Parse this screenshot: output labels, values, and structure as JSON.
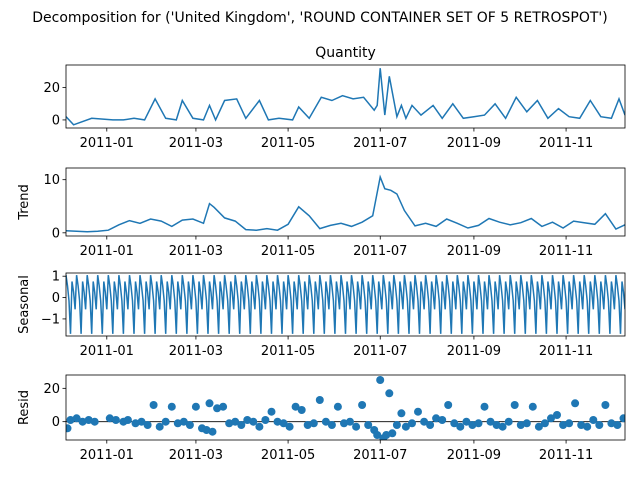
{
  "figure": {
    "suptitle": "Decomposition for ('United Kingdom', 'ROUND CONTAINER SET OF 5 RETROSPOT')",
    "line_color": "#1f77b4"
  },
  "chart_data": [
    {
      "type": "line",
      "title": "Quantity",
      "ylabel": "",
      "ylim": [
        -5,
        34
      ],
      "yticks": [
        0,
        20
      ],
      "xticks": [
        "2011-01",
        "2011-03",
        "2011-05",
        "2011-07",
        "2011-09",
        "2011-11"
      ],
      "xlim": [
        "2010-12-05",
        "2011-12-10"
      ],
      "series": [
        {
          "x": [
            "2010-12-05",
            "2010-12-10",
            "2010-12-22",
            "2011-01-05",
            "2011-01-12",
            "2011-01-19",
            "2011-01-26",
            "2011-02-02",
            "2011-02-09",
            "2011-02-16",
            "2011-02-20",
            "2011-02-27",
            "2011-03-06",
            "2011-03-10",
            "2011-03-14",
            "2011-03-20",
            "2011-03-28",
            "2011-04-03",
            "2011-04-12",
            "2011-04-18",
            "2011-04-25",
            "2011-05-04",
            "2011-05-08",
            "2011-05-15",
            "2011-05-23",
            "2011-05-30",
            "2011-06-06",
            "2011-06-13",
            "2011-06-20",
            "2011-06-27",
            "2011-06-29",
            "2011-07-01",
            "2011-07-04",
            "2011-07-07",
            "2011-07-12",
            "2011-07-15",
            "2011-07-18",
            "2011-07-22",
            "2011-07-28",
            "2011-08-05",
            "2011-08-11",
            "2011-08-18",
            "2011-08-25",
            "2011-09-01",
            "2011-09-08",
            "2011-09-15",
            "2011-09-22",
            "2011-09-29",
            "2011-10-06",
            "2011-10-13",
            "2011-10-20",
            "2011-10-27",
            "2011-11-03",
            "2011-11-10",
            "2011-11-17",
            "2011-11-24",
            "2011-12-01",
            "2011-12-06",
            "2011-12-10"
          ],
          "y": [
            2,
            -3,
            1,
            0,
            0,
            1,
            0,
            13,
            1,
            0,
            12,
            1,
            0,
            9,
            0,
            12,
            13,
            1,
            12,
            0,
            1,
            0,
            8,
            1,
            14,
            12,
            15,
            13,
            14,
            6,
            9,
            32,
            3,
            27,
            2,
            9,
            1,
            9,
            3,
            9,
            1,
            10,
            1,
            2,
            3,
            10,
            1,
            14,
            5,
            12,
            1,
            7,
            2,
            1,
            12,
            2,
            1,
            13,
            3
          ]
        }
      ]
    },
    {
      "type": "line",
      "title": "",
      "ylabel": "Trend",
      "ylim": [
        -0.6,
        12.2
      ],
      "yticks": [
        0,
        10
      ],
      "xticks": [
        "2011-01",
        "2011-03",
        "2011-05",
        "2011-07",
        "2011-09",
        "2011-11"
      ],
      "xlim": [
        "2010-12-05",
        "2011-12-10"
      ],
      "series": [
        {
          "x": [
            "2010-12-05",
            "2010-12-12",
            "2010-12-19",
            "2010-12-26",
            "2011-01-02",
            "2011-01-09",
            "2011-01-16",
            "2011-01-23",
            "2011-01-30",
            "2011-02-06",
            "2011-02-13",
            "2011-02-20",
            "2011-02-27",
            "2011-03-06",
            "2011-03-10",
            "2011-03-13",
            "2011-03-20",
            "2011-03-27",
            "2011-04-03",
            "2011-04-10",
            "2011-04-17",
            "2011-04-24",
            "2011-05-01",
            "2011-05-08",
            "2011-05-15",
            "2011-05-22",
            "2011-05-29",
            "2011-06-05",
            "2011-06-12",
            "2011-06-19",
            "2011-06-26",
            "2011-07-01",
            "2011-07-04",
            "2011-07-08",
            "2011-07-12",
            "2011-07-17",
            "2011-07-24",
            "2011-07-31",
            "2011-08-07",
            "2011-08-14",
            "2011-08-21",
            "2011-08-28",
            "2011-09-04",
            "2011-09-11",
            "2011-09-18",
            "2011-09-25",
            "2011-10-02",
            "2011-10-09",
            "2011-10-16",
            "2011-10-23",
            "2011-10-30",
            "2011-11-06",
            "2011-11-13",
            "2011-11-20",
            "2011-11-27",
            "2011-12-04",
            "2011-12-10"
          ],
          "y": [
            0.4,
            0.3,
            0.2,
            0.3,
            0.5,
            1.5,
            2.3,
            1.8,
            2.6,
            2.2,
            1.2,
            2.4,
            2.6,
            1.8,
            5.5,
            4.8,
            2.8,
            2.2,
            0.6,
            0.5,
            0.8,
            0.5,
            1.6,
            4.9,
            3.2,
            0.8,
            1.4,
            1.8,
            1.2,
            2.0,
            3.2,
            10.5,
            8.3,
            8.0,
            7.3,
            4.2,
            1.3,
            1.8,
            1.2,
            2.6,
            1.8,
            0.9,
            1.4,
            2.7,
            2.0,
            1.5,
            1.9,
            2.7,
            1.2,
            2.0,
            0.9,
            2.2,
            1.9,
            1.6,
            3.6,
            0.7,
            1.5
          ]
        }
      ]
    },
    {
      "type": "line",
      "title": "",
      "ylabel": "Seasonal",
      "ylim": [
        -1.8,
        1.15
      ],
      "yticks": [
        1,
        0,
        -1
      ],
      "xticks": [
        "2011-01",
        "2011-03",
        "2011-05",
        "2011-07",
        "2011-09",
        "2011-11"
      ],
      "xlim": [
        "2010-12-05",
        "2011-12-10"
      ],
      "period_days": 7,
      "cycle": [
        1.05,
        0.55,
        -0.15,
        -1.7,
        0.75,
        0.25,
        -0.55
      ]
    },
    {
      "type": "scatter",
      "title": "",
      "ylabel": "Resid",
      "ylim": [
        -11,
        28
      ],
      "yticks": [
        0,
        20
      ],
      "xticks": [
        "2011-01",
        "2011-03",
        "2011-05",
        "2011-07",
        "2011-09",
        "2011-11"
      ],
      "xlim": [
        "2010-12-05",
        "2011-12-10"
      ],
      "series": [
        {
          "x": [
            "2010-12-06",
            "2010-12-08",
            "2010-12-12",
            "2010-12-16",
            "2010-12-20",
            "2010-12-24",
            "2011-01-03",
            "2011-01-07",
            "2011-01-12",
            "2011-01-15",
            "2011-01-20",
            "2011-01-24",
            "2011-01-28",
            "2011-02-01",
            "2011-02-05",
            "2011-02-09",
            "2011-02-13",
            "2011-02-17",
            "2011-02-21",
            "2011-02-25",
            "2011-03-01",
            "2011-03-05",
            "2011-03-08",
            "2011-03-10",
            "2011-03-12",
            "2011-03-15",
            "2011-03-19",
            "2011-03-23",
            "2011-03-27",
            "2011-03-31",
            "2011-04-04",
            "2011-04-08",
            "2011-04-12",
            "2011-04-16",
            "2011-04-20",
            "2011-04-24",
            "2011-04-28",
            "2011-05-02",
            "2011-05-06",
            "2011-05-10",
            "2011-05-14",
            "2011-05-18",
            "2011-05-22",
            "2011-05-26",
            "2011-05-30",
            "2011-06-03",
            "2011-06-07",
            "2011-06-11",
            "2011-06-15",
            "2011-06-19",
            "2011-06-23",
            "2011-06-27",
            "2011-06-29",
            "2011-07-01",
            "2011-07-03",
            "2011-07-05",
            "2011-07-07",
            "2011-07-09",
            "2011-07-12",
            "2011-07-15",
            "2011-07-18",
            "2011-07-22",
            "2011-07-26",
            "2011-07-30",
            "2011-08-03",
            "2011-08-07",
            "2011-08-11",
            "2011-08-15",
            "2011-08-19",
            "2011-08-23",
            "2011-08-27",
            "2011-08-31",
            "2011-09-04",
            "2011-09-08",
            "2011-09-12",
            "2011-09-16",
            "2011-09-20",
            "2011-09-24",
            "2011-09-28",
            "2011-10-02",
            "2011-10-06",
            "2011-10-10",
            "2011-10-14",
            "2011-10-18",
            "2011-10-22",
            "2011-10-26",
            "2011-10-30",
            "2011-11-03",
            "2011-11-07",
            "2011-11-11",
            "2011-11-15",
            "2011-11-19",
            "2011-11-23",
            "2011-11-27",
            "2011-12-01",
            "2011-12-05",
            "2011-12-09"
          ],
          "y": [
            -4,
            1,
            2,
            0,
            1,
            0,
            2,
            1,
            0,
            1,
            -1,
            0,
            -2,
            10,
            -3,
            0,
            9,
            -1,
            0,
            -2,
            9,
            -4,
            -5,
            11,
            -6,
            8,
            9,
            -1,
            0,
            -2,
            1,
            0,
            -3,
            1,
            6,
            0,
            -1,
            -3,
            9,
            7,
            -2,
            -1,
            13,
            0,
            -2,
            9,
            -1,
            0,
            -3,
            10,
            -2,
            -5,
            -8,
            25,
            -10,
            -8,
            17,
            -7,
            -2,
            5,
            -3,
            -1,
            6,
            0,
            -2,
            2,
            1,
            10,
            -1,
            -3,
            0,
            -2,
            -1,
            9,
            0,
            -2,
            -3,
            0,
            10,
            -2,
            -1,
            9,
            -3,
            -1,
            2,
            4,
            -2,
            -1,
            11,
            -2,
            -3,
            1,
            -2,
            10,
            -1,
            -2,
            2
          ]
        }
      ]
    }
  ]
}
